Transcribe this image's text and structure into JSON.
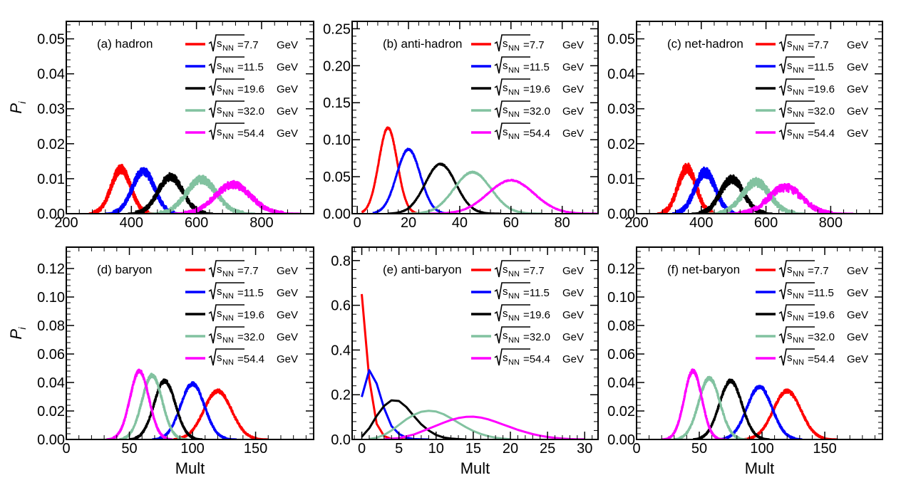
{
  "figure": {
    "legend_prefix": "s",
    "legend_subscript": "NN",
    "legend_unit": "GeV",
    "x_axis_title": "Mult",
    "y_axis_title_main": "P",
    "y_axis_title_sub": "i"
  },
  "chart_data": [
    {
      "type": "line",
      "title": "(a) hadron",
      "xlabel": "",
      "ylabel": "P_i",
      "xlim": [
        200,
        960
      ],
      "ylim": [
        0,
        0.055
      ],
      "xticks": [
        "200",
        "400",
        "600",
        "800"
      ],
      "yticks": [
        "0.00",
        "0.01",
        "0.02",
        "0.03",
        "0.04",
        "0.05"
      ],
      "series": [
        {
          "name": "=7.7",
          "energy": "7.7",
          "color": "#ff0000",
          "shape": "gauss",
          "mean": 368,
          "sigma": 30,
          "peak": 0.0128,
          "xmin": 270,
          "xmax": 470,
          "noise": 0.0012
        },
        {
          "name": "=11.5",
          "energy": "11.5",
          "color": "#0000ff",
          "shape": "gauss",
          "mean": 437,
          "sigma": 34,
          "peak": 0.0122,
          "xmin": 320,
          "xmax": 560,
          "noise": 0.0012
        },
        {
          "name": "=19.6",
          "energy": "19.6",
          "color": "#000000",
          "shape": "gauss",
          "mean": 520,
          "sigma": 38,
          "peak": 0.0105,
          "xmin": 390,
          "xmax": 650,
          "noise": 0.0011
        },
        {
          "name": "=32.0",
          "energy": "32.0",
          "color": "#82c2a0",
          "shape": "gauss",
          "mean": 615,
          "sigma": 46,
          "peak": 0.0098,
          "xmin": 450,
          "xmax": 780,
          "noise": 0.0011
        },
        {
          "name": "=54.4",
          "energy": "54.4",
          "color": "#ff00ff",
          "shape": "gauss",
          "mean": 712,
          "sigma": 55,
          "peak": 0.0083,
          "xmin": 530,
          "xmax": 920,
          "noise": 0.001
        }
      ]
    },
    {
      "type": "line",
      "title": "(b) anti-hadron",
      "xlabel": "",
      "ylabel": "",
      "xlim": [
        -2,
        94
      ],
      "ylim": [
        0,
        0.26
      ],
      "xticks": [
        "0",
        "20",
        "40",
        "60",
        "80"
      ],
      "yticks": [
        "0.00",
        "0.05",
        "0.10",
        "0.15",
        "0.20",
        "0.25"
      ],
      "series": [
        {
          "name": "=7.7",
          "energy": "7.7",
          "color": "#ff0000",
          "shape": "gauss",
          "mean": 12,
          "sigma": 3.6,
          "peak": 0.116,
          "xmin": 2,
          "xmax": 26,
          "noise": 0.001
        },
        {
          "name": "=11.5",
          "energy": "11.5",
          "color": "#0000ff",
          "shape": "gauss",
          "mean": 20,
          "sigma": 4.6,
          "peak": 0.087,
          "xmin": 6,
          "xmax": 36,
          "noise": 0.001
        },
        {
          "name": "=19.6",
          "energy": "19.6",
          "color": "#000000",
          "shape": "gauss",
          "mean": 32.5,
          "sigma": 6,
          "peak": 0.067,
          "xmin": 12,
          "xmax": 56,
          "noise": 0.0008
        },
        {
          "name": "=32.0",
          "energy": "32.0",
          "color": "#82c2a0",
          "shape": "gauss",
          "mean": 45,
          "sigma": 7.2,
          "peak": 0.056,
          "xmin": 20,
          "xmax": 72,
          "noise": 0.0008
        },
        {
          "name": "=54.4",
          "energy": "54.4",
          "color": "#ff00ff",
          "shape": "gauss",
          "mean": 60,
          "sigma": 9,
          "peak": 0.045,
          "xmin": 28,
          "xmax": 94,
          "noise": 0.0007
        }
      ]
    },
    {
      "type": "line",
      "title": "(c) net-hadron",
      "xlabel": "",
      "ylabel": "",
      "xlim": [
        200,
        960
      ],
      "ylim": [
        0,
        0.055
      ],
      "xticks": [
        "200",
        "400",
        "600",
        "800"
      ],
      "yticks": [
        "0.00",
        "0.01",
        "0.02",
        "0.03",
        "0.04",
        "0.05"
      ],
      "series": [
        {
          "name": "=7.7",
          "energy": "7.7",
          "color": "#ff0000",
          "shape": "gauss",
          "mean": 356,
          "sigma": 28,
          "peak": 0.013,
          "xmin": 265,
          "xmax": 450,
          "noise": 0.0014
        },
        {
          "name": "=11.5",
          "energy": "11.5",
          "color": "#0000ff",
          "shape": "gauss",
          "mean": 412,
          "sigma": 32,
          "peak": 0.0118,
          "xmin": 310,
          "xmax": 520,
          "noise": 0.0014
        },
        {
          "name": "=19.6",
          "energy": "19.6",
          "color": "#000000",
          "shape": "gauss",
          "mean": 495,
          "sigma": 36,
          "peak": 0.0098,
          "xmin": 370,
          "xmax": 620,
          "noise": 0.0012
        },
        {
          "name": "=32.0",
          "energy": "32.0",
          "color": "#82c2a0",
          "shape": "gauss",
          "mean": 570,
          "sigma": 42,
          "peak": 0.009,
          "xmin": 420,
          "xmax": 720,
          "noise": 0.0012
        },
        {
          "name": "=54.4",
          "energy": "54.4",
          "color": "#ff00ff",
          "shape": "gauss",
          "mean": 660,
          "sigma": 52,
          "peak": 0.0075,
          "xmin": 480,
          "xmax": 870,
          "noise": 0.0011
        }
      ]
    },
    {
      "type": "line",
      "title": "(d) baryon",
      "xlabel": "Mult",
      "ylabel": "P_i",
      "xlim": [
        0,
        196
      ],
      "ylim": [
        0,
        0.135
      ],
      "xticks": [
        "0",
        "50",
        "100",
        "150"
      ],
      "yticks": [
        "0.00",
        "0.02",
        "0.04",
        "0.06",
        "0.08",
        "0.10",
        "0.12"
      ],
      "series": [
        {
          "name": "=7.7",
          "energy": "7.7",
          "color": "#ff0000",
          "shape": "gauss",
          "mean": 120,
          "sigma": 11,
          "peak": 0.034,
          "xmin": 85,
          "xmax": 160,
          "noise": 0.0012
        },
        {
          "name": "=11.5",
          "energy": "11.5",
          "color": "#0000ff",
          "shape": "gauss",
          "mean": 100,
          "sigma": 9.5,
          "peak": 0.039,
          "xmin": 68,
          "xmax": 135,
          "noise": 0.0012
        },
        {
          "name": "=19.6",
          "energy": "19.6",
          "color": "#000000",
          "shape": "gauss",
          "mean": 78,
          "sigma": 8.5,
          "peak": 0.041,
          "xmin": 50,
          "xmax": 108,
          "noise": 0.0012
        },
        {
          "name": "=32.0",
          "energy": "32.0",
          "color": "#82c2a0",
          "shape": "gauss",
          "mean": 68,
          "sigma": 8,
          "peak": 0.045,
          "xmin": 42,
          "xmax": 96,
          "noise": 0.0012
        },
        {
          "name": "=54.4",
          "energy": "54.4",
          "color": "#ff00ff",
          "shape": "gauss",
          "mean": 58,
          "sigma": 7.5,
          "peak": 0.048,
          "xmin": 32,
          "xmax": 84,
          "noise": 0.0012
        }
      ]
    },
    {
      "type": "line",
      "title": "(e) anti-baryon",
      "xlabel": "Mult",
      "ylabel": "",
      "xlim": [
        -1.3,
        31.8
      ],
      "ylim": [
        0,
        0.86
      ],
      "xticks": [
        "0",
        "5",
        "10",
        "15",
        "20",
        "25",
        "30"
      ],
      "yticks": [
        "0.0",
        "0.2",
        "0.4",
        "0.6",
        "0.8"
      ],
      "series": [
        {
          "name": "=7.7",
          "energy": "7.7",
          "color": "#ff0000",
          "shape": "points",
          "x": [
            0,
            1,
            2,
            3,
            4,
            5,
            6
          ],
          "y": [
            0.65,
            0.27,
            0.07,
            0.015,
            0.003,
            0.0005,
            0
          ]
        },
        {
          "name": "=11.5",
          "energy": "11.5",
          "color": "#0000ff",
          "shape": "points",
          "x": [
            0,
            1,
            2,
            3,
            4,
            5,
            6,
            7,
            8,
            9
          ],
          "y": [
            0.19,
            0.31,
            0.25,
            0.14,
            0.06,
            0.025,
            0.008,
            0.002,
            0.0005,
            0
          ]
        },
        {
          "name": "=19.6",
          "energy": "19.6",
          "color": "#000000",
          "shape": "points",
          "x": [
            0,
            1,
            2,
            3,
            4,
            5,
            6,
            7,
            8,
            9,
            10,
            11,
            12,
            13,
            14
          ],
          "y": [
            0.012,
            0.05,
            0.105,
            0.15,
            0.175,
            0.172,
            0.145,
            0.105,
            0.068,
            0.04,
            0.02,
            0.009,
            0.004,
            0.0015,
            0
          ]
        },
        {
          "name": "=32.0",
          "energy": "32.0",
          "color": "#82c2a0",
          "shape": "points",
          "x": [
            1,
            2,
            3,
            4,
            5,
            6,
            7,
            8,
            9,
            10,
            11,
            12,
            13,
            14,
            15,
            16,
            17,
            18,
            19,
            20
          ],
          "y": [
            0.002,
            0.008,
            0.02,
            0.04,
            0.065,
            0.09,
            0.11,
            0.124,
            0.128,
            0.125,
            0.113,
            0.095,
            0.075,
            0.055,
            0.038,
            0.025,
            0.015,
            0.008,
            0.004,
            0.001
          ]
        },
        {
          "name": "=54.4",
          "energy": "54.4",
          "color": "#ff00ff",
          "shape": "points",
          "x": [
            3,
            5,
            7,
            9,
            11,
            12,
            13,
            14,
            15,
            16,
            17,
            18,
            19,
            20,
            21,
            22,
            23,
            24,
            25,
            26,
            27,
            28,
            29,
            30
          ],
          "y": [
            0.001,
            0.006,
            0.022,
            0.048,
            0.075,
            0.087,
            0.096,
            0.101,
            0.102,
            0.098,
            0.09,
            0.079,
            0.067,
            0.055,
            0.043,
            0.033,
            0.024,
            0.017,
            0.011,
            0.007,
            0.004,
            0.002,
            0.001,
            0.0005
          ]
        }
      ]
    },
    {
      "type": "line",
      "title": "(f) net-baryon",
      "xlabel": "Mult",
      "ylabel": "",
      "xlim": [
        0,
        196
      ],
      "ylim": [
        0,
        0.135
      ],
      "xticks": [
        "0",
        "50",
        "100",
        "150"
      ],
      "yticks": [
        "0.00",
        "0.02",
        "0.04",
        "0.06",
        "0.08",
        "0.10",
        "0.12"
      ],
      "series": [
        {
          "name": "=7.7",
          "energy": "7.7",
          "color": "#ff0000",
          "shape": "gauss",
          "mean": 120,
          "sigma": 11,
          "peak": 0.034,
          "xmin": 85,
          "xmax": 160,
          "noise": 0.0012
        },
        {
          "name": "=11.5",
          "energy": "11.5",
          "color": "#0000ff",
          "shape": "gauss",
          "mean": 98,
          "sigma": 10,
          "peak": 0.037,
          "xmin": 65,
          "xmax": 132,
          "noise": 0.0012
        },
        {
          "name": "=19.6",
          "energy": "19.6",
          "color": "#000000",
          "shape": "gauss",
          "mean": 75,
          "sigma": 9,
          "peak": 0.041,
          "xmin": 45,
          "xmax": 106,
          "noise": 0.0012
        },
        {
          "name": "=32.0",
          "energy": "32.0",
          "color": "#82c2a0",
          "shape": "gauss",
          "mean": 58,
          "sigma": 8.5,
          "peak": 0.043,
          "xmin": 30,
          "xmax": 88,
          "noise": 0.0012
        },
        {
          "name": "=54.4",
          "energy": "54.4",
          "color": "#ff00ff",
          "shape": "gauss",
          "mean": 45,
          "sigma": 7,
          "peak": 0.048,
          "xmin": 20,
          "xmax": 72,
          "noise": 0.0012
        }
      ]
    }
  ]
}
